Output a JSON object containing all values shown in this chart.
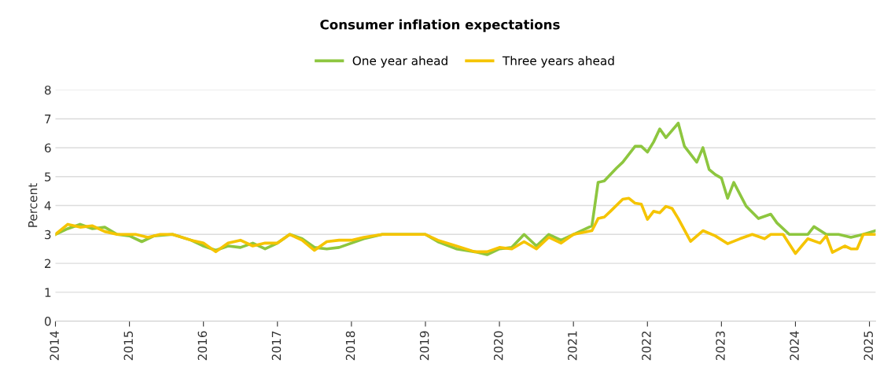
{
  "chart_data": {
    "type": "line",
    "title": "Consumer inflation expectations",
    "ylabel": "Percent",
    "xlim": [
      "2014-01",
      "2025-02"
    ],
    "xticks": [
      "2014",
      "2015",
      "2016",
      "2017",
      "2018",
      "2019",
      "2020",
      "2021",
      "2022",
      "2023",
      "2024",
      "2025"
    ],
    "ylim": [
      0,
      8
    ],
    "yticks": [
      0,
      1,
      2,
      3,
      4,
      5,
      6,
      7,
      8
    ],
    "grid": "y",
    "legend": "top",
    "line_style": "solid",
    "series": [
      {
        "name": "One year ahead",
        "color": "#8dc63f",
        "x": [
          "2014-01",
          "2014-03",
          "2014-05",
          "2014-07",
          "2014-09",
          "2014-11",
          "2015-01",
          "2015-03",
          "2015-05",
          "2015-08",
          "2015-11",
          "2016-01",
          "2016-03",
          "2016-05",
          "2016-07",
          "2016-09",
          "2016-11",
          "2017-01",
          "2017-03",
          "2017-05",
          "2017-07",
          "2017-09",
          "2017-11",
          "2018-01",
          "2018-03",
          "2018-06",
          "2018-09",
          "2019-01",
          "2019-03",
          "2019-06",
          "2019-09",
          "2019-11",
          "2020-01",
          "2020-03",
          "2020-05",
          "2020-07",
          "2020-09",
          "2020-11",
          "2021-01",
          "2021-04",
          "2021-05",
          "2021-06",
          "2021-08",
          "2021-09",
          "2021-11",
          "2021-12",
          "2022-01",
          "2022-02",
          "2022-03",
          "2022-04",
          "2022-06",
          "2022-07",
          "2022-09",
          "2022-10",
          "2022-11",
          "2022-12",
          "2023-01",
          "2023-02",
          "2023-03",
          "2023-05",
          "2023-07",
          "2023-09",
          "2023-10",
          "2023-12",
          "2024-03",
          "2024-04",
          "2024-06",
          "2024-08",
          "2024-10",
          "2024-12",
          "2025-02"
        ],
        "values": [
          3.0,
          3.2,
          3.35,
          3.2,
          3.25,
          3.0,
          2.95,
          2.75,
          2.95,
          3.0,
          2.8,
          2.6,
          2.45,
          2.6,
          2.55,
          2.7,
          2.5,
          2.7,
          3.0,
          2.85,
          2.55,
          2.5,
          2.55,
          2.7,
          2.85,
          3.0,
          3.0,
          3.0,
          2.75,
          2.5,
          2.4,
          2.3,
          2.5,
          2.55,
          3.0,
          2.6,
          3.0,
          2.8,
          3.0,
          3.3,
          4.8,
          4.85,
          5.3,
          5.5,
          6.05,
          6.05,
          5.85,
          6.2,
          6.65,
          6.35,
          6.85,
          6.05,
          5.5,
          6.0,
          5.25,
          5.07,
          4.95,
          4.25,
          4.8,
          3.98,
          3.55,
          3.7,
          3.4,
          3.0,
          3.0,
          3.27,
          3.0,
          3.0,
          2.9,
          3.0,
          3.13
        ]
      },
      {
        "name": "Three years ahead",
        "color": "#f5c400",
        "x": [
          "2014-01",
          "2014-03",
          "2014-05",
          "2014-07",
          "2014-09",
          "2014-11",
          "2015-02",
          "2015-04",
          "2015-06",
          "2015-08",
          "2015-11",
          "2016-01",
          "2016-03",
          "2016-05",
          "2016-07",
          "2016-09",
          "2016-11",
          "2017-01",
          "2017-03",
          "2017-05",
          "2017-07",
          "2017-09",
          "2017-11",
          "2018-01",
          "2018-03",
          "2018-06",
          "2018-09",
          "2019-01",
          "2019-03",
          "2019-06",
          "2019-09",
          "2019-11",
          "2020-01",
          "2020-03",
          "2020-05",
          "2020-07",
          "2020-09",
          "2020-11",
          "2021-01",
          "2021-04",
          "2021-05",
          "2021-06",
          "2021-07",
          "2021-09",
          "2021-10",
          "2021-11",
          "2021-12",
          "2022-01",
          "2022-02",
          "2022-03",
          "2022-04",
          "2022-05",
          "2022-06",
          "2022-08",
          "2022-10",
          "2022-12",
          "2023-02",
          "2023-04",
          "2023-06",
          "2023-08",
          "2023-09",
          "2023-11",
          "2024-01",
          "2024-03",
          "2024-05",
          "2024-06",
          "2024-07",
          "2024-09",
          "2024-10",
          "2024-11",
          "2024-12",
          "2025-02"
        ],
        "values": [
          3.0,
          3.35,
          3.25,
          3.3,
          3.1,
          3.0,
          3.0,
          2.9,
          3.0,
          3.0,
          2.8,
          2.7,
          2.4,
          2.7,
          2.8,
          2.6,
          2.7,
          2.7,
          3.0,
          2.8,
          2.45,
          2.75,
          2.8,
          2.8,
          2.9,
          3.0,
          3.0,
          3.0,
          2.8,
          2.6,
          2.4,
          2.4,
          2.55,
          2.5,
          2.75,
          2.5,
          2.9,
          2.7,
          3.0,
          3.13,
          3.55,
          3.6,
          3.8,
          4.22,
          4.25,
          4.08,
          4.05,
          3.52,
          3.8,
          3.75,
          3.97,
          3.9,
          3.55,
          2.76,
          3.13,
          2.95,
          2.68,
          2.85,
          3.0,
          2.85,
          3.0,
          3.0,
          2.34,
          2.85,
          2.7,
          2.95,
          2.38,
          2.6,
          2.5,
          2.5,
          3.0,
          3.0
        ]
      }
    ]
  }
}
